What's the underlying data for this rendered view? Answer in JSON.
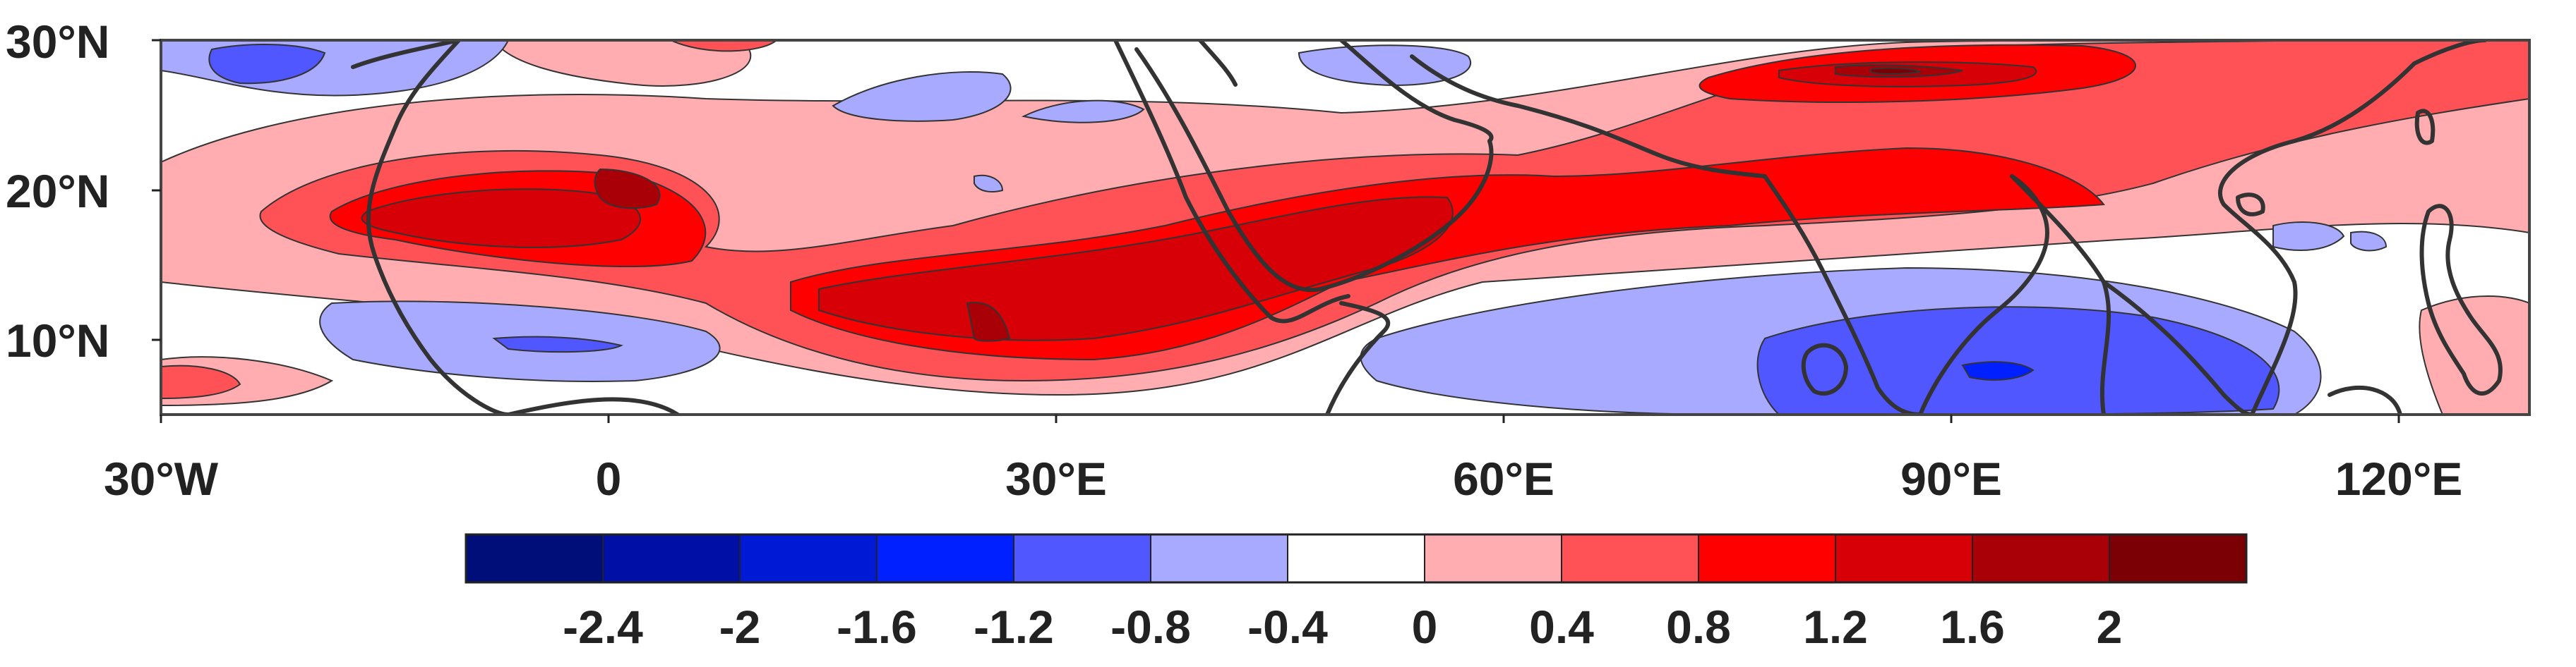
{
  "map": {
    "type": "contour-anomaly-map",
    "lat_labels": [
      "30°N",
      "20°N",
      "10°N"
    ],
    "lon_labels": [
      "30°W",
      "0",
      "30°E",
      "60°E",
      "90°E",
      "120°E"
    ],
    "lon_range": [
      -30,
      130
    ],
    "lat_range": [
      5,
      30
    ]
  },
  "colorbar": {
    "tick_labels": [
      "-2.4",
      "-2",
      "-1.6",
      "-1.2",
      "-0.8",
      "-0.4",
      "0",
      "0.4",
      "0.8",
      "1.2",
      "1.6",
      "2"
    ],
    "colors": [
      "#000e7a",
      "#0010a6",
      "#0019d4",
      "#0020ff",
      "#5157ff",
      "#a7aaff",
      "#ffffff",
      "#ffadb0",
      "#ff5257",
      "#ff0000",
      "#d60006",
      "#a80006",
      "#7a0006"
    ]
  }
}
